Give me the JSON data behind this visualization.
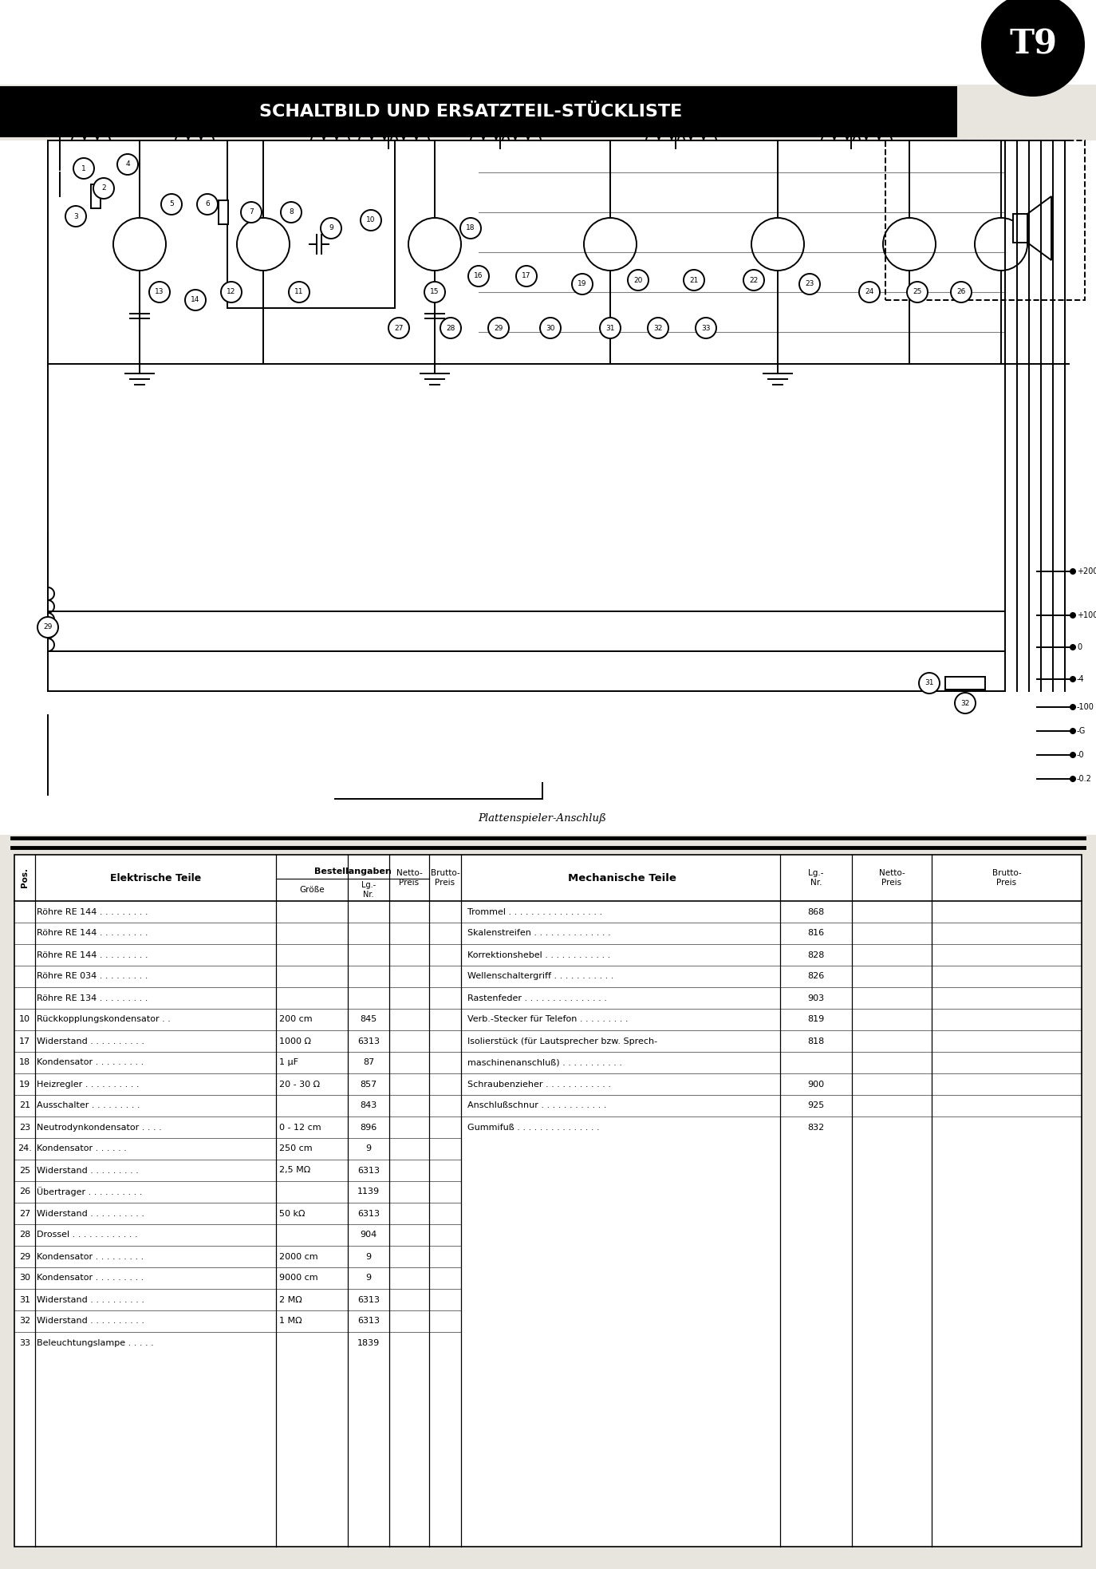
{
  "title": "SCHALTBILD UND ERSATZTEIL-STÜCKLISTE",
  "model": "T9",
  "bg_color": "#e8e4de",
  "header_bg": "#1a1a1a",
  "header_text_color": "#ffffff",
  "circle_bg": "#1a1a1a",
  "circle_text": "T9",
  "bestellangaben_header": "Bestellangaben",
  "left_rows": [
    [
      "",
      "Röhre RE 144 . . . . . . . . .",
      "",
      "",
      "",
      ""
    ],
    [
      "",
      "Röhre RE 144 . . . . . . . . .",
      "",
      "",
      "",
      ""
    ],
    [
      "",
      "Röhre RE 144 . . . . . . . . .",
      "",
      "",
      "",
      ""
    ],
    [
      "",
      "Röhre RE 034 . . . . . . . . .",
      "",
      "",
      "",
      ""
    ],
    [
      "",
      "Röhre RE 134 . . . . . . . . .",
      "",
      "",
      "",
      ""
    ],
    [
      "10",
      "Rückkopplungskondensator . .",
      "200 cm",
      "845",
      "",
      ""
    ],
    [
      "17",
      "Widerstand . . . . . . . . . .",
      "1000 Ω",
      "6313",
      "",
      ""
    ],
    [
      "18",
      "Kondensator . . . . . . . . .",
      "1 µF",
      "87",
      "",
      ""
    ],
    [
      "19",
      "Heizregler . . . . . . . . . .",
      "20 - 30 Ω",
      "857",
      "",
      ""
    ],
    [
      "21",
      "Ausschalter . . . . . . . . .",
      "",
      "843",
      "",
      ""
    ],
    [
      "23",
      "Neutrodynkondensator . . . .",
      "0 - 12 cm",
      "896",
      "",
      ""
    ],
    [
      "24.",
      "Kondensator . . . . . .",
      "250 cm",
      "9",
      "",
      ""
    ],
    [
      "25",
      "Widerstand . . . . . . . . .",
      "2,5 MΩ",
      "6313",
      "",
      ""
    ],
    [
      "26",
      "Übertrager . . . . . . . . . .",
      "",
      "1139",
      "",
      ""
    ],
    [
      "27",
      "Widerstand . . . . . . . . . .",
      "50 kΩ",
      "6313",
      "",
      ""
    ],
    [
      "28",
      "Drossel . . . . . . . . . . . .",
      "",
      "904",
      "",
      ""
    ],
    [
      "29",
      "Kondensator . . . . . . . . .",
      "2000 cm",
      "9",
      "",
      ""
    ],
    [
      "30",
      "Kondensator . . . . . . . . .",
      "9000 cm",
      "9",
      "",
      ""
    ],
    [
      "31",
      "Widerstand . . . . . . . . . .",
      "2 MΩ",
      "6313",
      "",
      ""
    ],
    [
      "32",
      "Widerstand . . . . . . . . . .",
      "1 MΩ",
      "6313",
      "",
      ""
    ],
    [
      "33",
      "Beleuchtungslampe . . . . .",
      "",
      "1839",
      "",
      ""
    ]
  ],
  "right_rows": [
    [
      "Trommel . . . . . . . . . . . . . . . . .",
      "868",
      "",
      ""
    ],
    [
      "Skalenstreifen . . . . . . . . . . . . . .",
      "816",
      "",
      ""
    ],
    [
      "Korrektionshebel . . . . . . . . . . . .",
      "828",
      "",
      ""
    ],
    [
      "Wellenschaltergriff . . . . . . . . . . .",
      "826",
      "",
      ""
    ],
    [
      "Rastenfeder . . . . . . . . . . . . . . .",
      "903",
      "",
      ""
    ],
    [
      "Verb.-Stecker für Telefon . . . . . . . . .",
      "819",
      "",
      ""
    ],
    [
      "Isolierstück (für Lautsprecher bzw. Sprech-",
      "818",
      "",
      ""
    ],
    [
      "maschinenanschluß) . . . . . . . . . . .",
      "",
      "",
      ""
    ],
    [
      "Schraubenzieher . . . . . . . . . . . .",
      "900",
      "",
      ""
    ],
    [
      "Anschlußschnur . . . . . . . . . . . .",
      "925",
      "",
      ""
    ],
    [
      "Gummifuß . . . . . . . . . . . . . . .",
      "832",
      "",
      ""
    ]
  ]
}
